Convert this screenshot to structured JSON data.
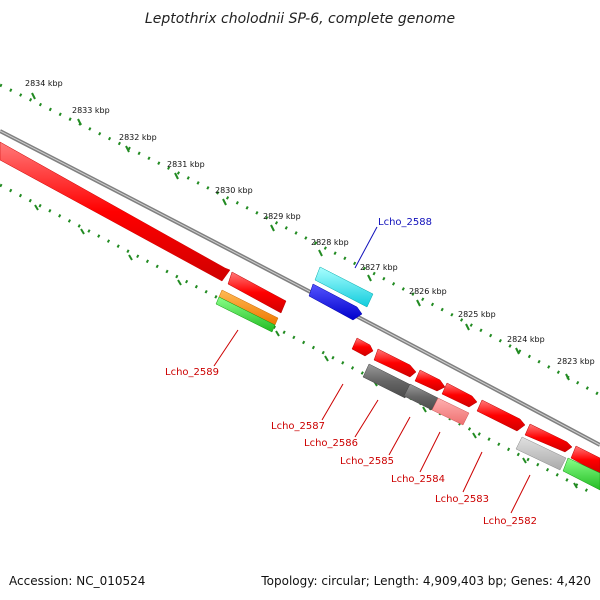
{
  "title": "Leptothrix cholodnii SP-6, complete genome",
  "accession": "Accession: NC_010524",
  "topology": "Topology: circular; Length: 4,909,403 bp; Genes: 4,420",
  "kbp_ticks": [
    "2834 kbp",
    "2833 kbp",
    "2832 kbp",
    "2831 kbp",
    "2830 kbp",
    "2829 kbp",
    "2828 kbp",
    "2827 kbp",
    "2826 kbp",
    "2825 kbp",
    "2824 kbp",
    "2823 kbp"
  ],
  "genes": [
    {
      "label": "Lcho_2588",
      "color": "#1111bb"
    },
    {
      "label": "Lcho_2589",
      "color": "#cc0000"
    },
    {
      "label": "Lcho_2587",
      "color": "#cc0000"
    },
    {
      "label": "Lcho_2586",
      "color": "#cc0000"
    },
    {
      "label": "Lcho_2585",
      "color": "#cc0000"
    },
    {
      "label": "Lcho_2584",
      "color": "#cc0000"
    },
    {
      "label": "Lcho_2583",
      "color": "#cc0000"
    },
    {
      "label": "Lcho_2582",
      "color": "#cc0000"
    }
  ],
  "colors": {
    "cds_forward": "#ff1a1a",
    "cds_reverse_gray": "#666666",
    "cyan_feature": "#22e5ee",
    "blue_feature": "#1010ee",
    "orange_feature": "#ff8800",
    "green_feature": "#33cc33",
    "backbone": "#888888",
    "tick_green": "#228b22"
  }
}
